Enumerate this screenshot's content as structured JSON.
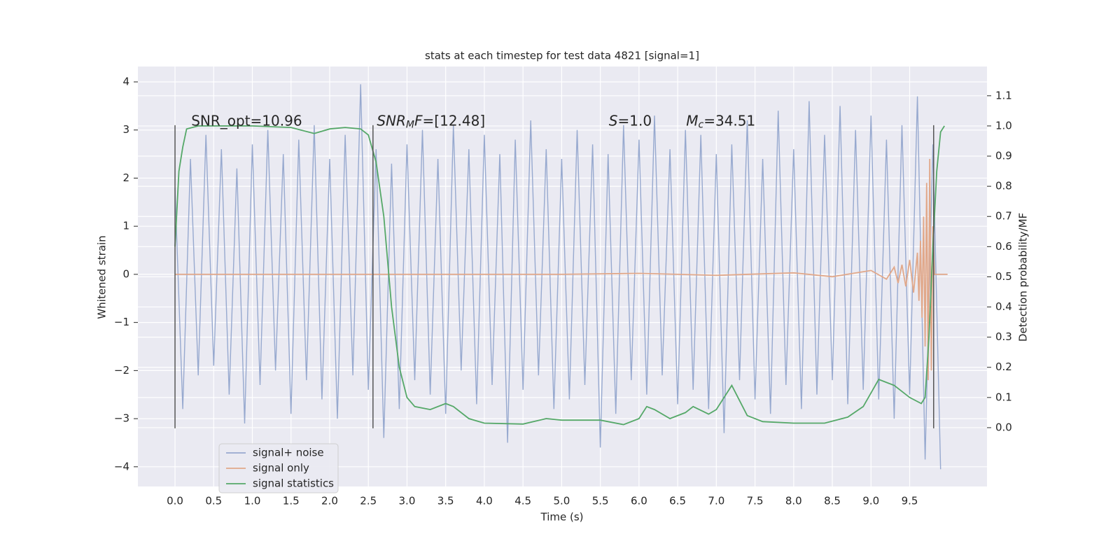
{
  "chart_data": {
    "type": "line",
    "title": "stats at each timestep for test data 4821 [signal=1]",
    "xlabel": "Time (s)",
    "ylabel": "Whitened strain",
    "y2label": "Detection probability/MF",
    "background": "#eaeaf2",
    "grid": true,
    "legend": "lower left",
    "xlim": [
      -0.48,
      10.5
    ],
    "ylim": [
      -4.41,
      4.32
    ],
    "y2lim": [
      -0.195,
      1.197
    ],
    "xticks": [
      {
        "value": 0,
        "label": "0.0"
      },
      0.5,
      {
        "value": 1,
        "label": "1.0"
      },
      1.5,
      {
        "value": 2,
        "label": "2.0"
      },
      2.5,
      {
        "value": 3,
        "label": "3.0"
      },
      3.5,
      {
        "value": 4,
        "label": "4.0"
      },
      4.5,
      {
        "value": 5,
        "label": "5.0"
      },
      5.5,
      {
        "value": 6,
        "label": "6.0"
      },
      6.5,
      {
        "value": 7,
        "label": "7.0"
      },
      7.5,
      {
        "value": 8,
        "label": "8.0"
      },
      8.5,
      {
        "value": 9,
        "label": "9.0"
      },
      9.5
    ],
    "yticks": [
      {
        "value": -4,
        "label": "−4"
      },
      {
        "value": -3,
        "label": "−3"
      },
      {
        "value": -2,
        "label": "−2"
      },
      {
        "value": -1,
        "label": "−1"
      },
      0,
      1,
      2,
      3,
      4
    ],
    "y2ticks": [
      {
        "value": 0,
        "label": "0.0"
      },
      0.1,
      0.2,
      0.3,
      0.4,
      0.5,
      0.6,
      0.7,
      0.8,
      0.9,
      {
        "value": 1,
        "label": "1.0"
      },
      1.1
    ],
    "series": [
      {
        "name": "signal+ noise",
        "color": "#97a9cf",
        "x": [
          0,
          0.1,
          0.2,
          0.3,
          0.4,
          0.5,
          0.6,
          0.7,
          0.8,
          0.9,
          1,
          1.1,
          1.2,
          1.3,
          1.4,
          1.5,
          1.6,
          1.7,
          1.8,
          1.9,
          2,
          2.1,
          2.2,
          2.3,
          2.4,
          2.5,
          2.6,
          2.7,
          2.8,
          2.9,
          3,
          3.1,
          3.2,
          3.3,
          3.4,
          3.5,
          3.6,
          3.7,
          3.8,
          3.9,
          4,
          4.1,
          4.2,
          4.3,
          4.4,
          4.5,
          4.6,
          4.7,
          4.8,
          4.9,
          5,
          5.1,
          5.2,
          5.3,
          5.4,
          5.5,
          5.6,
          5.7,
          5.8,
          5.9,
          6,
          6.1,
          6.2,
          6.3,
          6.4,
          6.5,
          6.6,
          6.7,
          6.8,
          6.9,
          7,
          7.1,
          7.2,
          7.3,
          7.4,
          7.5,
          7.6,
          7.7,
          7.8,
          7.9,
          8,
          8.1,
          8.2,
          8.3,
          8.4,
          8.5,
          8.6,
          8.7,
          8.8,
          8.9,
          9,
          9.1,
          9.2,
          9.3,
          9.4,
          9.5,
          9.6,
          9.7,
          9.8,
          9.9
        ],
        "values": [
          1.8,
          -2.8,
          2.4,
          -2.1,
          2.9,
          -1.9,
          2.6,
          -2.5,
          2.2,
          -3.1,
          2.7,
          -2.3,
          3.0,
          -2.0,
          2.5,
          -2.9,
          2.8,
          -2.2,
          3.1,
          -2.6,
          2.4,
          -3.0,
          2.9,
          -2.1,
          3.95,
          -2.4,
          2.6,
          -3.4,
          2.3,
          -2.8,
          2.7,
          -2.2,
          3.0,
          -2.5,
          2.4,
          -2.9,
          3.1,
          -2.0,
          2.6,
          -2.7,
          2.9,
          -2.3,
          2.5,
          -3.5,
          2.8,
          -2.4,
          3.2,
          -2.1,
          2.6,
          -2.8,
          2.4,
          -2.6,
          3.0,
          -2.3,
          2.7,
          -3.6,
          2.5,
          -2.9,
          3.1,
          -2.2,
          2.8,
          -2.5,
          3.3,
          -2.1,
          2.6,
          -2.7,
          3.0,
          -2.4,
          2.9,
          -2.8,
          2.5,
          -3.3,
          2.7,
          -2.2,
          3.2,
          -2.6,
          2.4,
          -2.9,
          3.4,
          -2.3,
          2.6,
          -2.8,
          3.6,
          -2.5,
          2.9,
          -2.2,
          3.5,
          -2.7,
          3.0,
          -2.4,
          3.3,
          -2.6,
          2.8,
          -3.0,
          3.1,
          -2.5,
          3.7,
          -3.85,
          2.7,
          -4.05
        ]
      },
      {
        "name": "signal only",
        "color": "#e1a88a",
        "x": [
          0,
          1,
          2,
          3,
          4,
          5,
          6,
          7,
          8,
          8.5,
          9.0,
          9.2,
          9.3,
          9.35,
          9.4,
          9.45,
          9.5,
          9.55,
          9.6,
          9.62,
          9.64,
          9.66,
          9.68,
          9.7,
          9.72,
          9.74,
          9.76,
          9.78,
          9.8,
          9.82,
          9.9,
          9.99
        ],
        "values": [
          0,
          0,
          0,
          0,
          0,
          0,
          0.02,
          -0.02,
          0.03,
          -0.05,
          0.08,
          -0.1,
          0.15,
          -0.18,
          0.2,
          -0.25,
          0.3,
          -0.38,
          0.45,
          -0.55,
          0.7,
          -0.9,
          1.2,
          -1.5,
          1.9,
          -2.2,
          2.4,
          -2.0,
          1.0,
          0,
          0,
          0
        ]
      },
      {
        "name": "signal statistics",
        "color": "#55a868",
        "axis": "y2",
        "x": [
          0,
          0.05,
          0.1,
          0.15,
          0.3,
          1.0,
          1.5,
          1.8,
          2.0,
          2.2,
          2.4,
          2.5,
          2.6,
          2.7,
          2.8,
          2.9,
          3.0,
          3.1,
          3.3,
          3.5,
          3.6,
          3.8,
          4.0,
          4.5,
          4.8,
          5.0,
          5.5,
          5.8,
          6.0,
          6.1,
          6.2,
          6.4,
          6.6,
          6.7,
          6.9,
          7.0,
          7.2,
          7.4,
          7.6,
          8.0,
          8.4,
          8.7,
          8.9,
          9.1,
          9.3,
          9.5,
          9.65,
          9.7,
          9.75,
          9.8,
          9.85,
          9.9,
          9.95
        ],
        "values": [
          0.6,
          0.85,
          0.93,
          0.99,
          1.0,
          1.0,
          0.995,
          0.975,
          0.99,
          0.995,
          0.99,
          0.97,
          0.88,
          0.7,
          0.4,
          0.2,
          0.1,
          0.07,
          0.06,
          0.08,
          0.07,
          0.03,
          0.015,
          0.012,
          0.03,
          0.025,
          0.025,
          0.01,
          0.03,
          0.07,
          0.06,
          0.03,
          0.05,
          0.07,
          0.045,
          0.06,
          0.14,
          0.04,
          0.02,
          0.015,
          0.015,
          0.035,
          0.07,
          0.16,
          0.14,
          0.1,
          0.08,
          0.1,
          0.3,
          0.6,
          0.85,
          0.98,
          1.0
        ]
      }
    ],
    "vlines": {
      "x": [
        0,
        2.56,
        9.81
      ],
      "ymin": -3.2,
      "ymax": 3.1,
      "color": "#555555"
    },
    "annotations": [
      {
        "x": 0.21,
        "y": 3.18,
        "parts": [
          {
            "text": "SNR_opt=10.96"
          }
        ]
      },
      {
        "x": 2.61,
        "y": 3.18,
        "parts": [
          {
            "text": "SNR",
            "italic": true
          },
          {
            "text": "M",
            "italic": true,
            "sub": true
          },
          {
            "text": "F",
            "italic": true
          },
          {
            "text": "=[12.48]"
          }
        ]
      },
      {
        "x": 5.61,
        "y": 3.18,
        "parts": [
          {
            "text": "S",
            "italic": true
          },
          {
            "text": "=1.0"
          }
        ]
      },
      {
        "x": 6.61,
        "y": 3.18,
        "parts": [
          {
            "text": "M",
            "italic": true
          },
          {
            "text": "c",
            "italic": true,
            "sub": true
          },
          {
            "text": "=34.51"
          }
        ]
      }
    ]
  }
}
